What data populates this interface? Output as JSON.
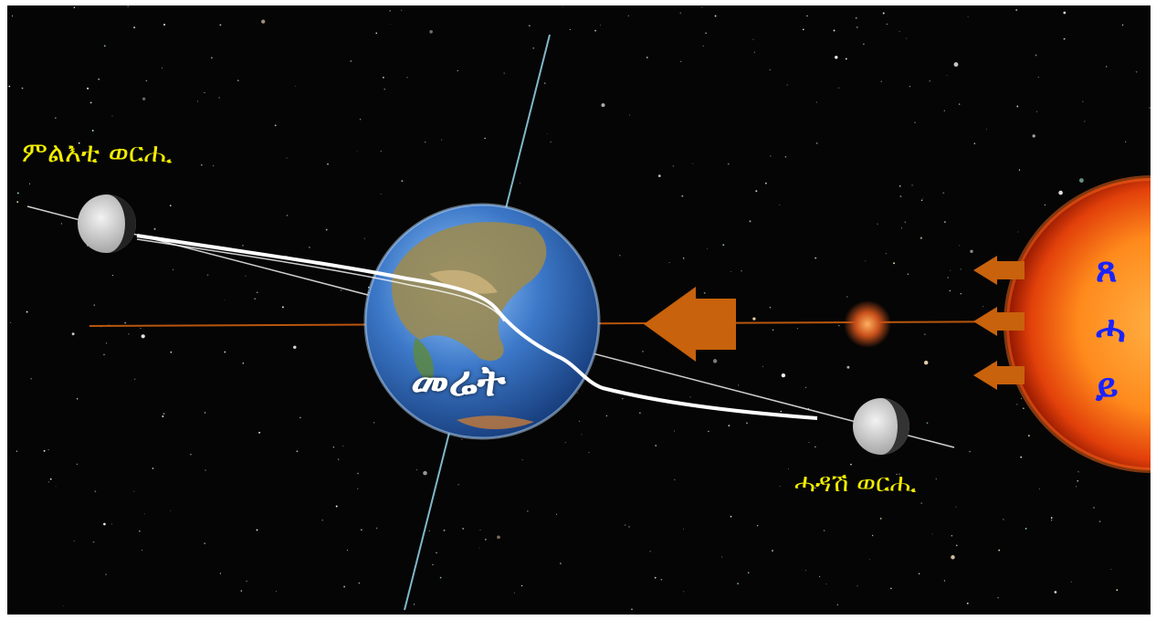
{
  "labels": {
    "full_moon": "ምልእቲ ወርሒ",
    "new_moon": "ሓዳሽ ወርሒ",
    "earth": "መሬት",
    "sun_chars": [
      "ጸ",
      "ሓ",
      "ይ"
    ]
  },
  "colors": {
    "space": "#050505",
    "label_yellow": "#f2ee00",
    "sun_text_blue": "#1a22ff",
    "arrow_orange": "#c8620c",
    "orbit_white": "#ffffff",
    "axis_cyan": "#7fb7c9"
  },
  "icons": [
    "moon-icon",
    "earth-icon",
    "sun-icon",
    "arrow-left-icon"
  ]
}
